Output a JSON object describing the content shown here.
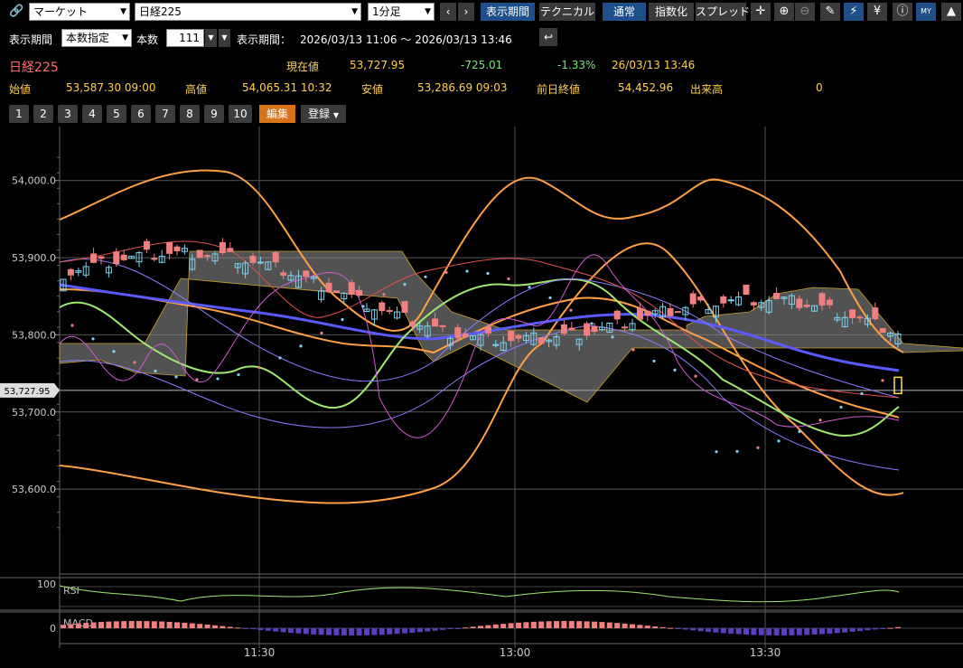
{
  "toolbar": {
    "link_icon": "link-icon",
    "market_select": "マーケット",
    "symbol_select": "日経225",
    "interval_select": "1分足",
    "prev_label": "‹",
    "next_label": "›",
    "display_period_btn": "表示期間",
    "technical_btn": "テクニカル",
    "normal_btn": "通常",
    "index_btn": "指数化",
    "spread_btn": "スプレッド",
    "icons": [
      "crosshair-icon",
      "zoom-in-icon",
      "zoom-out-icon",
      "pencil-icon",
      "chart-type-icon",
      "yen-icon",
      "info-icon",
      "my-icon",
      "area-chart-icon"
    ]
  },
  "period_bar": {
    "label1": "表示期間",
    "mode_select": "本数指定",
    "count_label": "本数",
    "count_value": "111",
    "label2": "表示期間：",
    "range": "2026/03/13 11:06 ～ 2026/03/13 13:46"
  },
  "quote": {
    "name": "日経225",
    "current_label": "現在値",
    "current": "53,727.95",
    "change": "-725.01",
    "change_pct": "-1.33%",
    "datetime": "26/03/13 13:46",
    "open_label": "始値",
    "open": "53,587.30 09:00",
    "high_label": "高値",
    "high": "54,065.31 10:32",
    "low_label": "安値",
    "low": "53,286.69 09:03",
    "prev_close_label": "前日終値",
    "prev_close": "54,452.96",
    "volume_label": "出来高",
    "volume": "0"
  },
  "pages": [
    "1",
    "2",
    "3",
    "4",
    "5",
    "6",
    "7",
    "8",
    "9",
    "10"
  ],
  "edit_btn": "編集",
  "register_btn": "登録",
  "colors": {
    "up": "#f08080",
    "down": "#7fd3f0",
    "accent": "#e07b00",
    "grid": "#555555"
  },
  "chart_data": {
    "type": "candlestick",
    "y_ticks": [
      "54,000.0",
      "53,900.0",
      "53,800.0",
      "53,700.0",
      "53,600.0"
    ],
    "y_tick_values": [
      54000,
      53900,
      53800,
      53700,
      53600
    ],
    "ylim": [
      53490,
      54070
    ],
    "x_ticks": [
      "11:30",
      "13:00",
      "13:30"
    ],
    "current_price_label": "53,727.95",
    "current_price": 53727.95,
    "rsi_label": "RSI",
    "rsi_tick": "100",
    "macd_label": "MACD",
    "macd_tick": "0"
  }
}
